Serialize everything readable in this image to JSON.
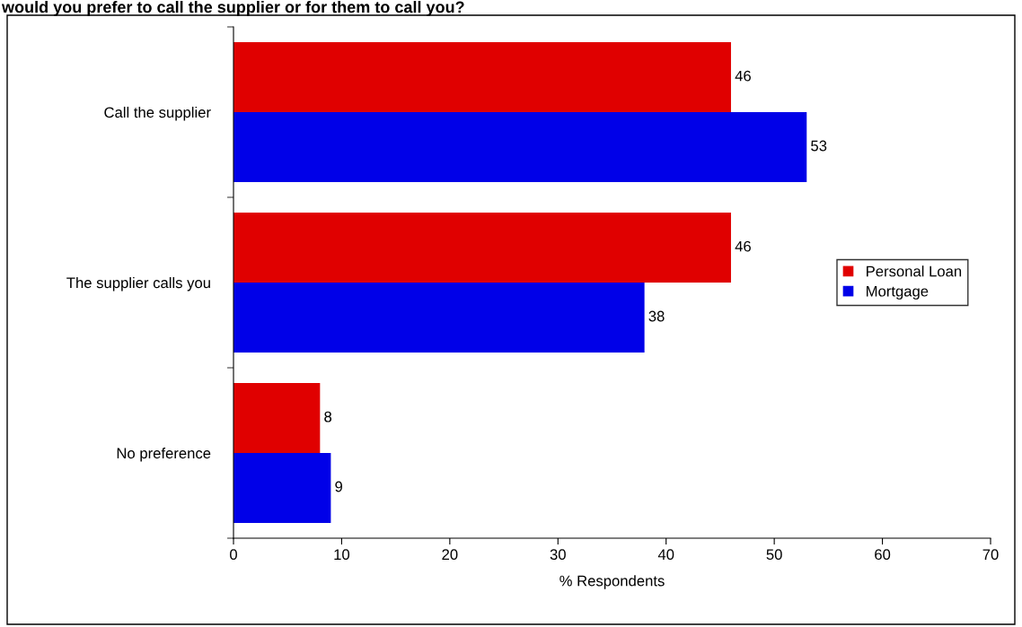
{
  "chart_data": {
    "type": "bar",
    "orientation": "horizontal",
    "title": "would you prefer to call the supplier or for them to call you?",
    "xlabel": "% Respondents",
    "categories": [
      "Call the supplier",
      "The supplier calls you",
      "No preference"
    ],
    "series": [
      {
        "name": "Personal Loan",
        "color": "#e00000",
        "values": [
          46,
          46,
          8
        ]
      },
      {
        "name": "Mortgage",
        "color": "#0000e8",
        "values": [
          53,
          38,
          9
        ]
      }
    ],
    "xlim": [
      0,
      70
    ],
    "xticks": [
      0,
      10,
      20,
      30,
      40,
      50,
      60,
      70
    ],
    "data_labels": true,
    "grid": false,
    "legend": "right"
  }
}
